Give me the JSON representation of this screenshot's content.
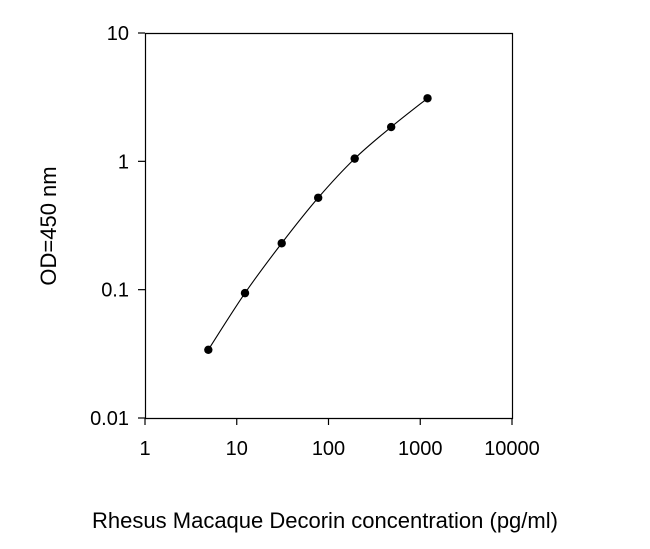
{
  "chart_data": {
    "type": "scatter",
    "title": "",
    "xlabel": "Rhesus Macaque Decorin concentration (pg/ml)",
    "ylabel": "OD=450 nm",
    "x_scale": "log",
    "y_scale": "log",
    "xlim": [
      1,
      10000
    ],
    "ylim": [
      0.01,
      10
    ],
    "x_ticks": [
      1,
      10,
      100,
      1000,
      10000
    ],
    "x_tick_labels": [
      "1",
      "10",
      "100",
      "1000",
      "10000"
    ],
    "y_ticks": [
      0.01,
      0.1,
      1,
      10
    ],
    "y_tick_labels": [
      "0.01",
      "0.1",
      "1",
      "10"
    ],
    "grid": false,
    "legend": "none",
    "line_color": "#000000",
    "marker_color": "#000000",
    "series": [
      {
        "x": [
          4.9,
          12.3,
          30.9,
          77.2,
          193,
          482,
          1200
        ],
        "y": [
          0.034,
          0.094,
          0.23,
          0.52,
          1.05,
          1.85,
          3.1
        ]
      }
    ]
  }
}
